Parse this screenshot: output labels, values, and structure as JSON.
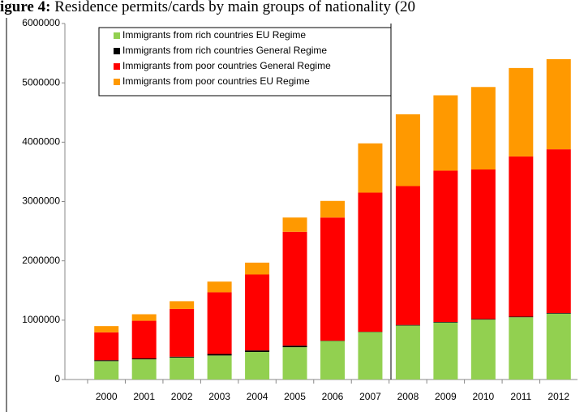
{
  "chart_data": {
    "type": "stacked_bar",
    "title_label": "igure 4:",
    "title": "Residence permits/cards by main groups of nationality (20",
    "categories": [
      "2000",
      "2001",
      "2002",
      "2003",
      "2004",
      "2005",
      "2006",
      "2007",
      "2008",
      "2009",
      "2010",
      "2011",
      "2012"
    ],
    "series": [
      {
        "name": "Immigrants from rich countries EU Regime",
        "color": "#92d050",
        "values": [
          310000,
          340000,
          370000,
          405000,
          465000,
          545000,
          650000,
          800000,
          910000,
          960000,
          1010000,
          1050000,
          1110000
        ]
      },
      {
        "name": "Immigrants from rich countries General Regime",
        "color": "#000000",
        "values": [
          15000,
          15000,
          15000,
          25000,
          25000,
          25000,
          5000,
          5000,
          10000,
          10000,
          10000,
          10000,
          10000
        ]
      },
      {
        "name": "Immigrants from poor countries General Regime",
        "color": "#ff0000",
        "values": [
          470000,
          635000,
          805000,
          1040000,
          1280000,
          1920000,
          2075000,
          2345000,
          2340000,
          2550000,
          2520000,
          2700000,
          2760000
        ]
      },
      {
        "name": "Immigrants from poor countries EU Regime",
        "color": "#ff9900",
        "values": [
          105000,
          110000,
          130000,
          180000,
          200000,
          240000,
          280000,
          830000,
          1210000,
          1270000,
          1390000,
          1490000,
          1520000
        ]
      }
    ],
    "ylim": [
      0,
      6000000
    ],
    "yticks": [
      0,
      1000000,
      2000000,
      3000000,
      4000000,
      5000000,
      6000000
    ],
    "legend": "top-left"
  }
}
